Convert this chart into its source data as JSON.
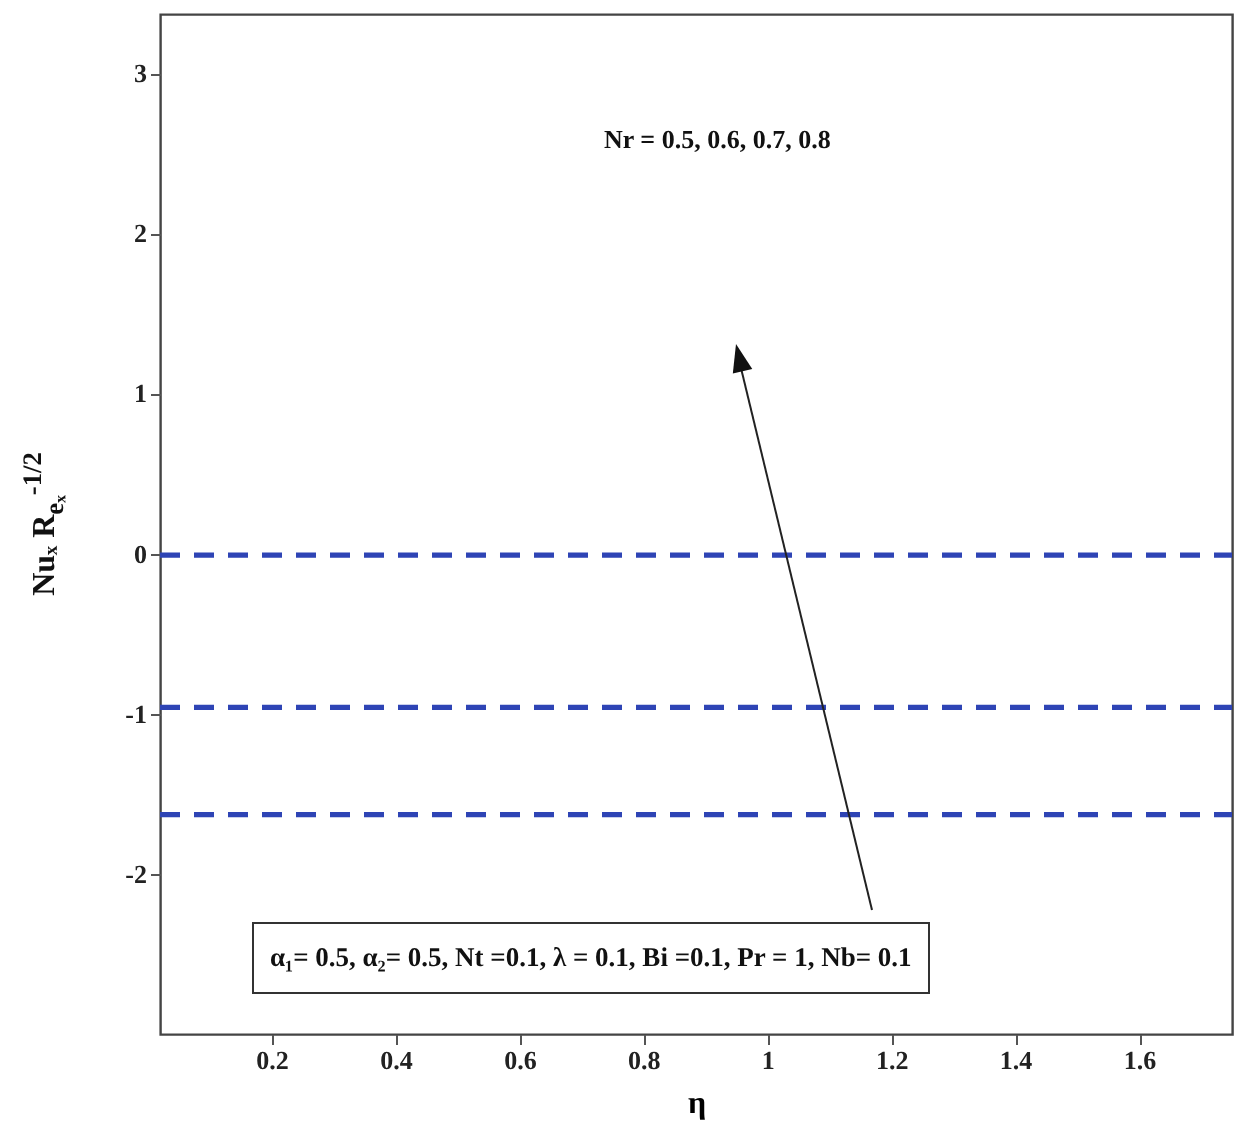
{
  "chart_data": {
    "type": "line",
    "xlabel": "η",
    "ylabel": "Nuₓ R$_{eₓ}$$^{-1/2}$",
    "x": [
      0.02,
      1.75
    ],
    "series": [
      {
        "color": "#2e44b5",
        "values": [
          -0.01,
          -0.01
        ]
      },
      {
        "color": "#2e44b5",
        "values": [
          -0.96,
          -0.96
        ]
      },
      {
        "color": "#2e44b5",
        "values": [
          -1.63,
          -1.63
        ]
      }
    ],
    "line_style": "dashed",
    "marker": "none",
    "grid": false,
    "xlim": [
      0.02,
      1.75
    ],
    "xticks": [
      0.2,
      0.4,
      0.6,
      0.8,
      1,
      1.2,
      1.4,
      1.6
    ],
    "ylim": [
      -3,
      3.37
    ],
    "yticks": [
      -2,
      -1,
      0,
      1,
      2,
      3
    ],
    "annotations": [
      "Nr = 0.5, 0.6, 0.7, 0.8",
      "α₁= 0.5, α₂= 0.5, Nt =0.1, λ = 0.1, Bi =0.1, Pr = 1, Nb= 0.1"
    ]
  }
}
